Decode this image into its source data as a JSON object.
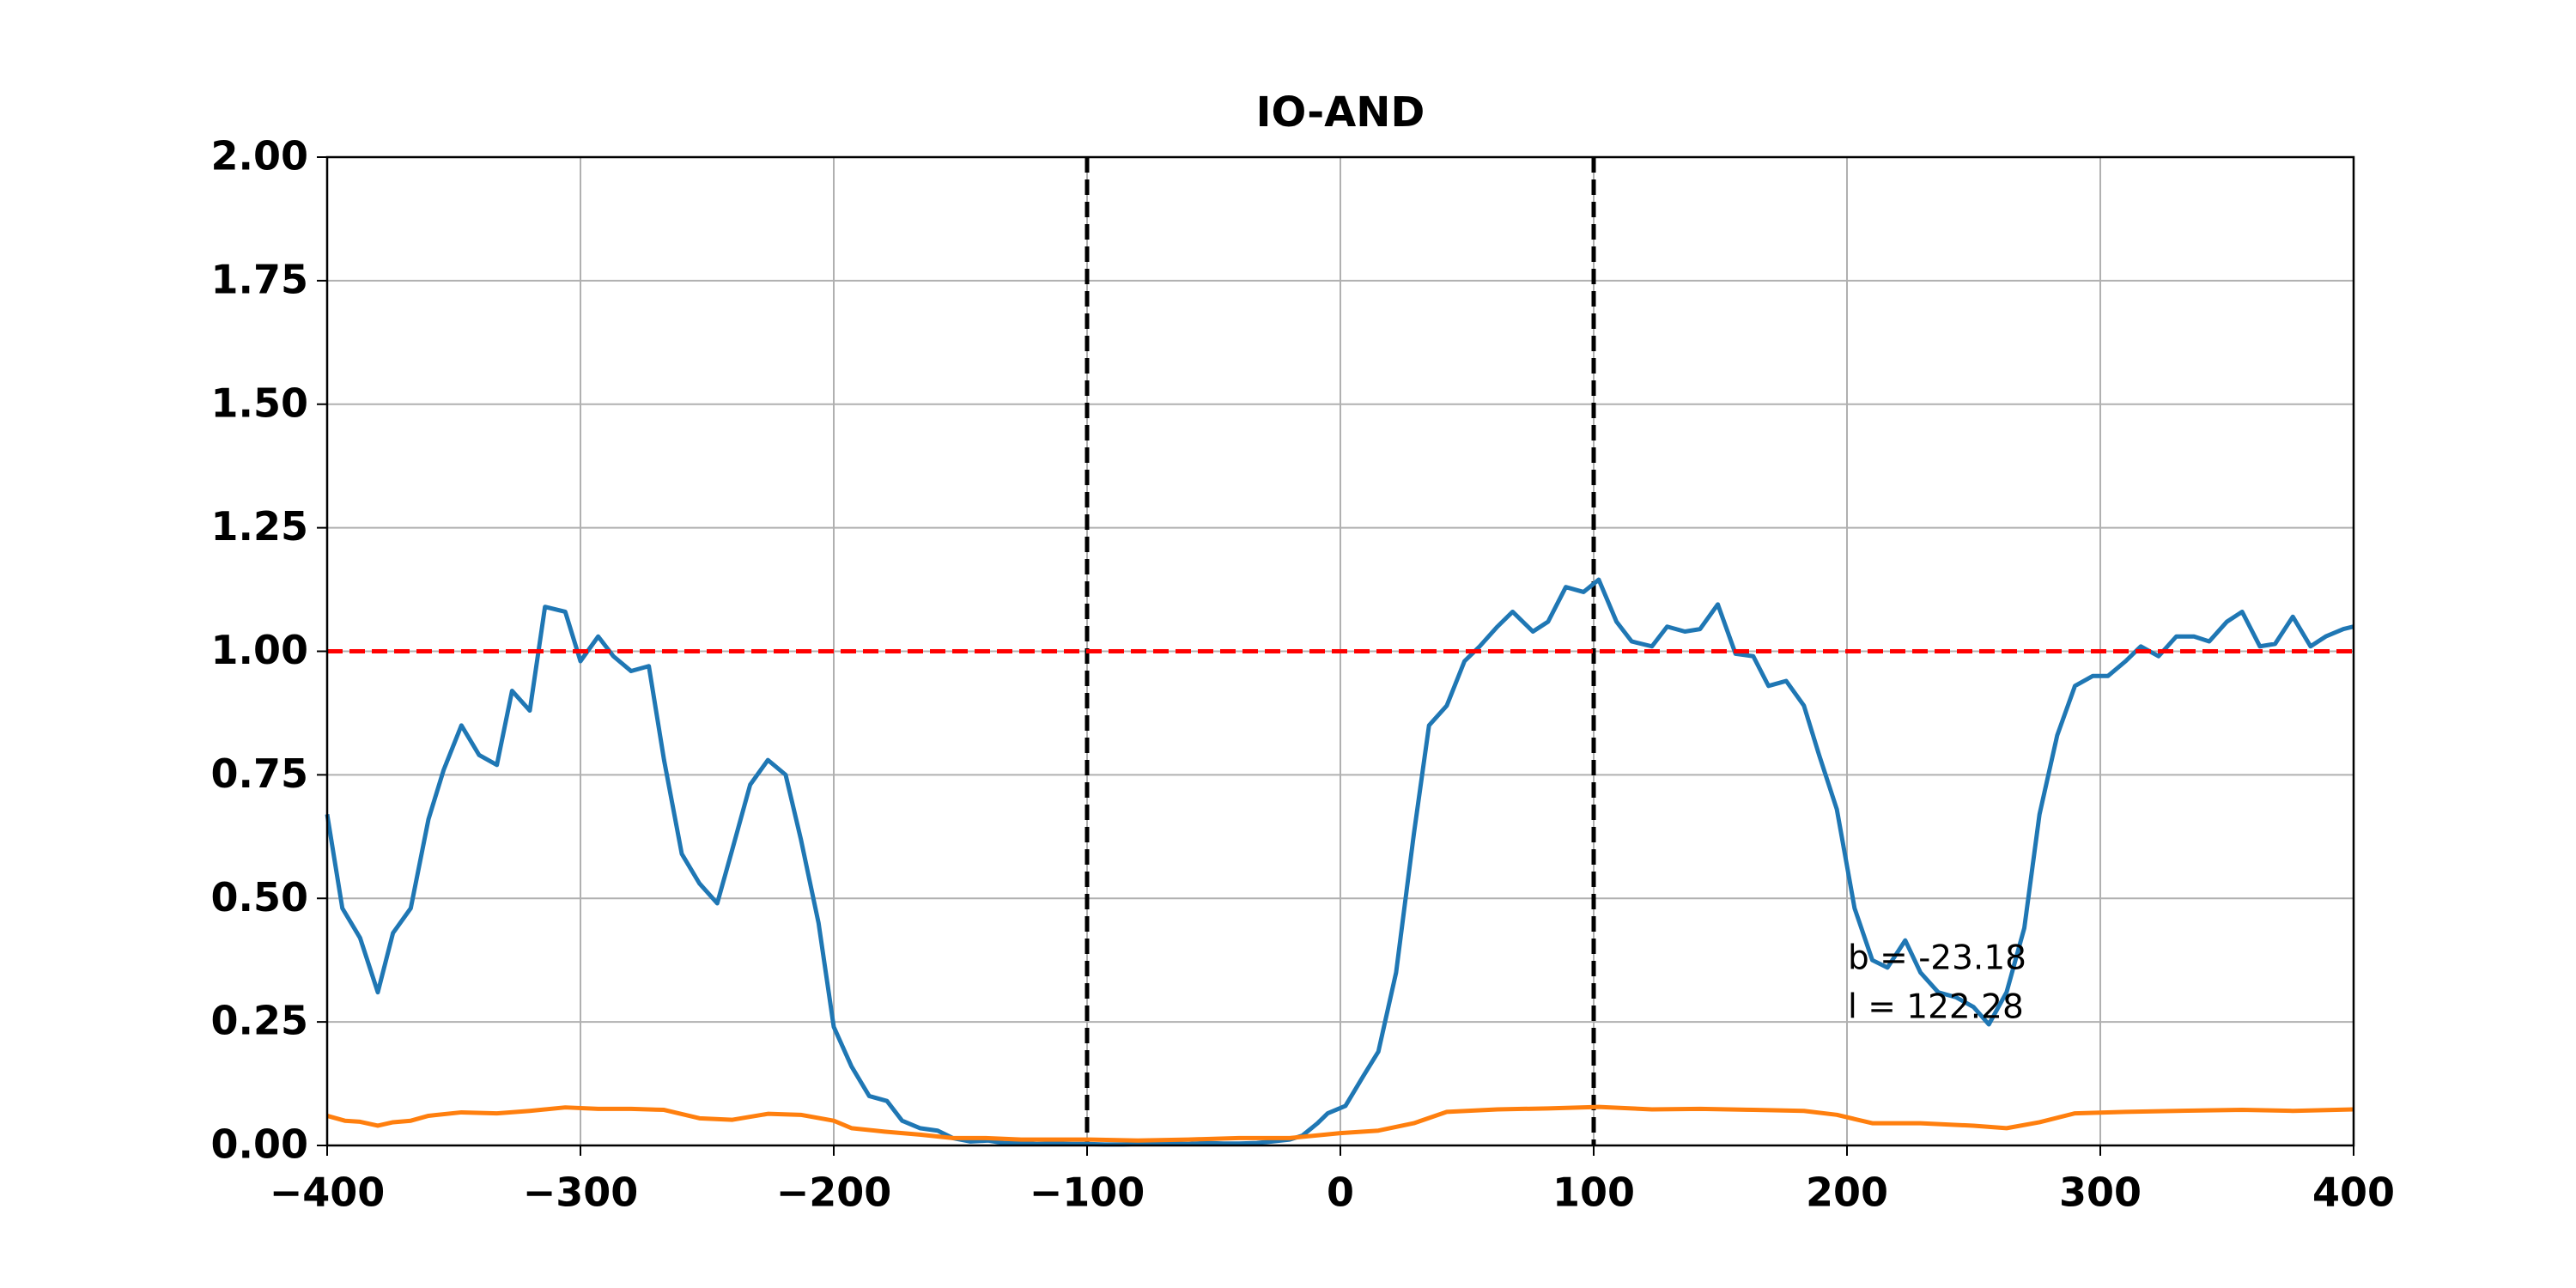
{
  "chart_data": {
    "type": "line",
    "title": "IO-AND",
    "xlim": [
      -400,
      400
    ],
    "ylim": [
      0,
      2
    ],
    "xticks": [
      {
        "value": -400,
        "label": "−400"
      },
      {
        "value": -300,
        "label": "−300"
      },
      {
        "value": -200,
        "label": "−200"
      },
      {
        "value": -100,
        "label": "−100"
      },
      0,
      100,
      200,
      300,
      400
    ],
    "yticks": [
      {
        "value": 0,
        "label": "0.00"
      },
      {
        "value": 0.25,
        "label": "0.25"
      },
      {
        "value": 0.5,
        "label": "0.50"
      },
      {
        "value": 0.75,
        "label": "0.75"
      },
      {
        "value": 1,
        "label": "1.00"
      },
      {
        "value": 1.25,
        "label": "1.25"
      },
      {
        "value": 1.5,
        "label": "1.50"
      },
      {
        "value": 1.75,
        "label": "1.75"
      },
      {
        "value": 2,
        "label": "2.00"
      }
    ],
    "grid": true,
    "vlines": {
      "color": "#000000",
      "values": [
        -100,
        100
      ]
    },
    "hline": {
      "color": "#ff0000",
      "value": 1
    },
    "annotations": [
      "b = -23.18",
      "l = 122.28"
    ],
    "series": [
      {
        "color": "#1f77b4",
        "x": [
          -400,
          -394,
          -387,
          -380,
          -374,
          -367,
          -360,
          -354,
          -347,
          -340,
          -333,
          -327,
          -320,
          -314,
          -306,
          -300,
          -293,
          -287,
          -280,
          -273,
          -267,
          -260,
          -253,
          -246,
          -240,
          -233,
          -226,
          -219,
          -213,
          -206,
          -200,
          -193,
          -186,
          -179,
          -173,
          -166,
          -159,
          -153,
          -146,
          -139,
          -133,
          -126,
          -120,
          -113,
          -106,
          -100,
          -93,
          -86,
          -80,
          -73,
          -66,
          -60,
          -53,
          -46,
          -40,
          -33,
          -27,
          -20,
          -15,
          -9,
          -5,
          2,
          9,
          15,
          22,
          29,
          35,
          42,
          49,
          55,
          62,
          68,
          76,
          82,
          89,
          96,
          102,
          109,
          115,
          123,
          129,
          136,
          142,
          149,
          156,
          163,
          169,
          176,
          183,
          189,
          196,
          203,
          210,
          216,
          223,
          229,
          236,
          243,
          250,
          256,
          263,
          270,
          276,
          283,
          290,
          297,
          303,
          310,
          316,
          323,
          330,
          337,
          343,
          350,
          356,
          363,
          369,
          376,
          383,
          389,
          396,
          400
        ],
        "values": [
          0.67,
          0.48,
          0.42,
          0.31,
          0.43,
          0.48,
          0.66,
          0.76,
          0.85,
          0.79,
          0.77,
          0.92,
          0.88,
          1.09,
          1.08,
          0.98,
          1.03,
          0.99,
          0.96,
          0.97,
          0.78,
          0.59,
          0.53,
          0.49,
          0.6,
          0.73,
          0.78,
          0.75,
          0.62,
          0.45,
          0.24,
          0.16,
          0.1,
          0.09,
          0.05,
          0.035,
          0.03,
          0.015,
          0.008,
          0.01,
          0.005,
          0.005,
          0.003,
          0.004,
          0.003,
          0.003,
          0.002,
          0.002,
          0.003,
          0.003,
          0.004,
          0.003,
          0.005,
          0.004,
          0.004,
          0.005,
          0.008,
          0.012,
          0.02,
          0.045,
          0.065,
          0.08,
          0.14,
          0.19,
          0.35,
          0.63,
          0.85,
          0.89,
          0.98,
          1.01,
          1.05,
          1.08,
          1.04,
          1.06,
          1.13,
          1.12,
          1.145,
          1.06,
          1.02,
          1.01,
          1.05,
          1.04,
          1.045,
          1.095,
          0.995,
          0.99,
          0.93,
          0.94,
          0.89,
          0.79,
          0.68,
          0.48,
          0.375,
          0.36,
          0.415,
          0.35,
          0.31,
          0.3,
          0.28,
          0.245,
          0.31,
          0.44,
          0.67,
          0.83,
          0.93,
          0.95,
          0.95,
          0.98,
          1.01,
          0.99,
          1.03,
          1.03,
          1.02,
          1.06,
          1.08,
          1.01,
          1.015,
          1.07,
          1.01,
          1.03,
          1.045,
          1.05
        ]
      },
      {
        "color": "#ff7f0e",
        "x": [
          -400,
          -393,
          -387,
          -380,
          -374,
          -367,
          -360,
          -347,
          -333,
          -320,
          -306,
          -293,
          -280,
          -267,
          -253,
          -240,
          -226,
          -213,
          -200,
          -193,
          -180,
          -166,
          -153,
          -140,
          -126,
          -100,
          -80,
          -60,
          -40,
          -20,
          0,
          15,
          29,
          42,
          62,
          82,
          102,
          123,
          142,
          163,
          183,
          196,
          210,
          229,
          250,
          263,
          276,
          290,
          310,
          330,
          356,
          376,
          400
        ],
        "values": [
          0.06,
          0.05,
          0.048,
          0.04,
          0.047,
          0.05,
          0.06,
          0.067,
          0.065,
          0.07,
          0.077,
          0.074,
          0.074,
          0.072,
          0.055,
          0.052,
          0.064,
          0.062,
          0.05,
          0.035,
          0.028,
          0.022,
          0.015,
          0.015,
          0.012,
          0.012,
          0.01,
          0.012,
          0.015,
          0.015,
          0.025,
          0.03,
          0.045,
          0.068,
          0.073,
          0.075,
          0.078,
          0.073,
          0.074,
          0.072,
          0.07,
          0.062,
          0.045,
          0.045,
          0.04,
          0.035,
          0.047,
          0.065,
          0.068,
          0.07,
          0.072,
          0.07,
          0.073
        ]
      }
    ]
  }
}
